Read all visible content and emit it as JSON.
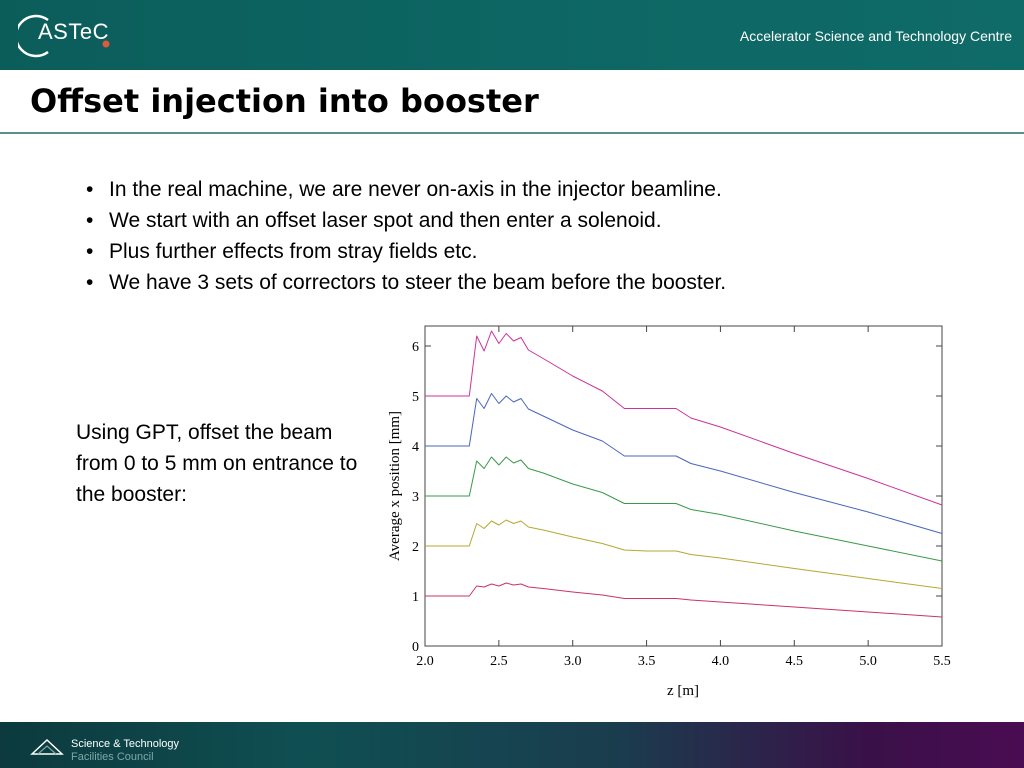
{
  "header": {
    "logo_text": "ASTeC",
    "org_name": "Accelerator Science and Technology Centre"
  },
  "slide": {
    "title": "Offset injection into booster",
    "bullets": [
      "In the real machine, we are never on-axis in the injector beamline.",
      "We start with an offset laser spot and then enter a solenoid.",
      "Plus further effects from stray fields etc.",
      "We have 3 sets of correctors to steer the beam before the booster."
    ],
    "side_text": "Using GPT, offset the beam from 0 to 5 mm on entrance to the booster:"
  },
  "footer": {
    "line1": "Science & Technology",
    "line2": "Facilities Council"
  },
  "chart_data": {
    "type": "line",
    "xlabel": "z [m]",
    "ylabel": "Average x position [mm]",
    "xlim": [
      2.0,
      5.5
    ],
    "ylim": [
      0,
      6.4
    ],
    "x_ticks": [
      "2.0",
      "2.5",
      "3.0",
      "3.5",
      "4.0",
      "4.5",
      "5.0",
      "5.5"
    ],
    "y_ticks": [
      "0",
      "1",
      "2",
      "3",
      "4",
      "5",
      "6"
    ],
    "series": [
      {
        "offset": 1,
        "color": "#cc3366",
        "x": [
          2.0,
          2.3,
          2.35,
          2.4,
          2.45,
          2.5,
          2.55,
          2.6,
          2.65,
          2.7,
          2.8,
          3.0,
          3.2,
          3.35,
          3.5,
          3.7,
          3.8,
          4.0,
          4.5,
          5.0,
          5.5
        ],
        "y": [
          1.0,
          1.0,
          1.2,
          1.18,
          1.24,
          1.2,
          1.26,
          1.22,
          1.24,
          1.18,
          1.15,
          1.08,
          1.02,
          0.95,
          0.95,
          0.95,
          0.92,
          0.88,
          0.78,
          0.68,
          0.58
        ]
      },
      {
        "offset": 2,
        "color": "#b5a830",
        "x": [
          2.0,
          2.3,
          2.35,
          2.4,
          2.45,
          2.5,
          2.55,
          2.6,
          2.65,
          2.7,
          2.8,
          3.0,
          3.2,
          3.35,
          3.5,
          3.7,
          3.8,
          4.0,
          4.5,
          5.0,
          5.5
        ],
        "y": [
          2.0,
          2.0,
          2.45,
          2.35,
          2.5,
          2.42,
          2.52,
          2.45,
          2.5,
          2.38,
          2.32,
          2.18,
          2.05,
          1.92,
          1.9,
          1.9,
          1.83,
          1.76,
          1.55,
          1.35,
          1.15
        ]
      },
      {
        "offset": 3,
        "color": "#3a9a4a",
        "x": [
          2.0,
          2.3,
          2.35,
          2.4,
          2.45,
          2.5,
          2.55,
          2.6,
          2.65,
          2.7,
          2.8,
          3.0,
          3.2,
          3.35,
          3.5,
          3.7,
          3.8,
          4.0,
          4.5,
          5.0,
          5.5
        ],
        "y": [
          3.0,
          3.0,
          3.7,
          3.55,
          3.78,
          3.62,
          3.78,
          3.66,
          3.72,
          3.55,
          3.46,
          3.24,
          3.07,
          2.85,
          2.85,
          2.85,
          2.73,
          2.63,
          2.3,
          2.0,
          1.7
        ]
      },
      {
        "offset": 4,
        "color": "#4a66bb",
        "x": [
          2.0,
          2.3,
          2.35,
          2.4,
          2.45,
          2.5,
          2.55,
          2.6,
          2.65,
          2.7,
          2.8,
          3.0,
          3.2,
          3.35,
          3.5,
          3.7,
          3.8,
          4.0,
          4.5,
          5.0,
          5.5
        ],
        "y": [
          4.0,
          4.0,
          4.95,
          4.75,
          5.05,
          4.85,
          5.0,
          4.88,
          4.95,
          4.74,
          4.6,
          4.32,
          4.1,
          3.8,
          3.8,
          3.8,
          3.65,
          3.5,
          3.07,
          2.68,
          2.25
        ]
      },
      {
        "offset": 5,
        "color": "#cc3399",
        "x": [
          2.0,
          2.3,
          2.35,
          2.4,
          2.45,
          2.5,
          2.55,
          2.6,
          2.65,
          2.7,
          2.8,
          3.0,
          3.2,
          3.35,
          3.5,
          3.7,
          3.8,
          4.0,
          4.5,
          5.0,
          5.5
        ],
        "y": [
          5.0,
          5.0,
          6.2,
          5.9,
          6.3,
          6.05,
          6.25,
          6.1,
          6.17,
          5.92,
          5.75,
          5.4,
          5.1,
          4.75,
          4.75,
          4.75,
          4.56,
          4.38,
          3.85,
          3.35,
          2.82
        ]
      }
    ]
  }
}
